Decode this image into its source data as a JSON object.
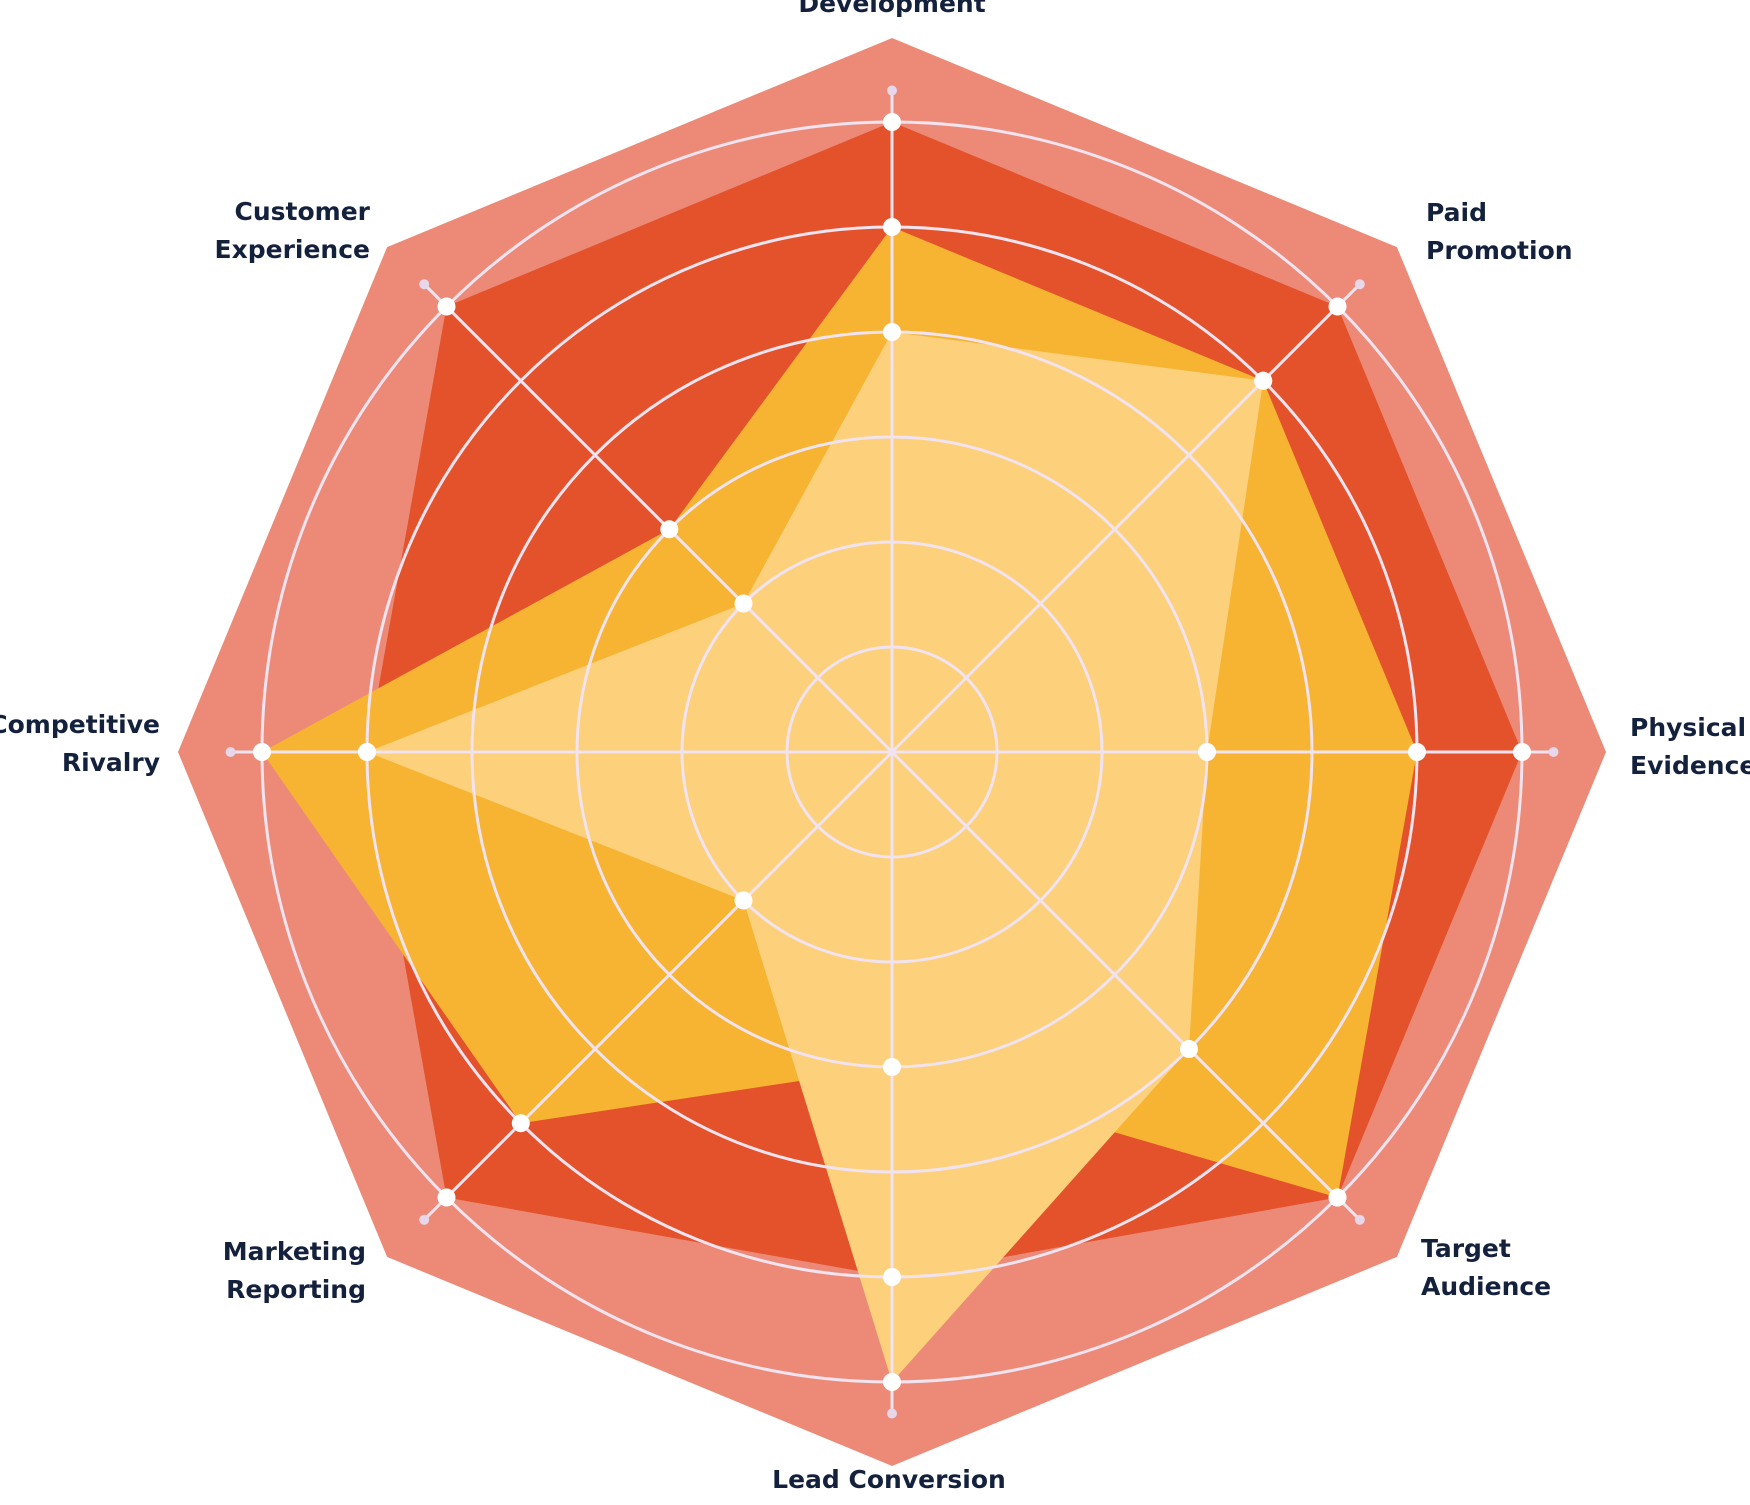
{
  "chart_data": {
    "type": "radar",
    "categories": [
      [
        "Development"
      ],
      [
        "Paid",
        "Promotion"
      ],
      [
        "Physical",
        "Evidence"
      ],
      [
        "Target",
        "Audience"
      ],
      [
        "Lead Conversion"
      ],
      [
        "Marketing",
        "Reporting"
      ],
      [
        "Competitive",
        "Rivalry"
      ],
      [
        "Customer",
        "Experience"
      ]
    ],
    "rmax": 6,
    "rings": [
      1,
      2,
      3,
      4,
      5,
      6
    ],
    "series": [
      {
        "values": [
          6.8,
          6.8,
          6.8,
          6.8,
          6.8,
          6.8,
          6.8,
          6.8
        ],
        "color": "#ec8a77"
      },
      {
        "values": [
          6,
          6,
          6,
          6,
          5,
          6,
          5,
          6
        ],
        "color": "#e4522b"
      },
      {
        "values": [
          5,
          5,
          5,
          6,
          3,
          5,
          6,
          3
        ],
        "color": "#f7b433"
      },
      {
        "values": [
          4,
          5,
          3,
          4,
          6,
          2,
          5,
          2
        ],
        "color": "#fdd07b"
      }
    ],
    "colors": {
      "grid": "#f1e3ef",
      "marker": "#ffffff",
      "outer_tick": "#e8d6ea",
      "label": "#14213d"
    },
    "grid": true
  }
}
